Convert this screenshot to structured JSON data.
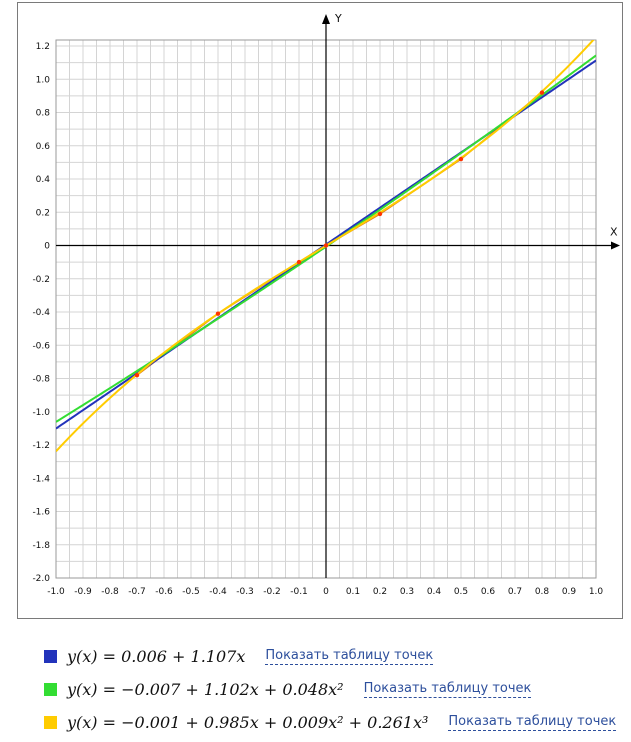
{
  "chart_data": {
    "type": "scatter",
    "xlabel": "X",
    "ylabel": "Y",
    "xlim": [
      -1.0,
      1.0
    ],
    "ylim": [
      -2.0,
      1.25
    ],
    "grid": true,
    "x_ticks": [
      "-1.0",
      "-0.9",
      "-0.8",
      "-0.7",
      "-0.6",
      "-0.5",
      "-0.4",
      "-0.3",
      "-0.2",
      "-0.1",
      "0",
      "0.1",
      "0.2",
      "0.3",
      "0.4",
      "0.5",
      "0.6",
      "0.7",
      "0.8",
      "0.9",
      "1.0"
    ],
    "y_ticks": [
      "-2.0",
      "-1.8",
      "-1.6",
      "-1.4",
      "-1.2",
      "-1.0",
      "-0.8",
      "-0.6",
      "-0.4",
      "-0.2",
      "0",
      "0.2",
      "0.4",
      "0.6",
      "0.8",
      "1.0",
      "1.2"
    ],
    "points": [
      {
        "x": -0.7,
        "y": -0.78
      },
      {
        "x": -0.4,
        "y": -0.41
      },
      {
        "x": -0.1,
        "y": -0.1
      },
      {
        "x": 0.0,
        "y": 0.0
      },
      {
        "x": 0.2,
        "y": 0.19
      },
      {
        "x": 0.5,
        "y": 0.52
      },
      {
        "x": 0.8,
        "y": 0.92
      }
    ],
    "point_color": "#ff3300",
    "points_line_color": "#e07820",
    "series": [
      {
        "color": "#2233bb",
        "coefficients": [
          0.006,
          1.107
        ]
      },
      {
        "color": "#33dd33",
        "coefficients": [
          -0.007,
          1.102,
          0.048
        ]
      },
      {
        "color": "#ffcc00",
        "coefficients": [
          -0.001,
          0.985,
          0.009,
          0.261
        ]
      }
    ]
  },
  "legend": {
    "items": [
      {
        "color": "#2233bb",
        "formula": "y(x) = 0.006 + 1.107x",
        "link": "Показать таблицу точек"
      },
      {
        "color": "#33dd33",
        "formula": "y(x) = −0.007 + 1.102x + 0.048x²",
        "link": "Показать таблицу точек"
      },
      {
        "color": "#ffcc00",
        "formula": "y(x) = −0.001 + 0.985x + 0.009x² + 0.261x³",
        "link": "Показать таблицу точек"
      }
    ]
  }
}
